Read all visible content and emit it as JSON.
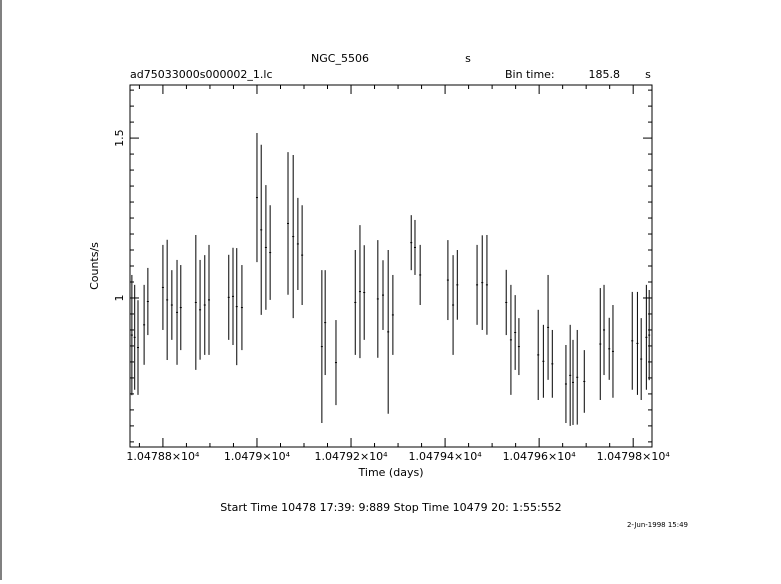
{
  "chart_data": {
    "type": "errorbar",
    "title": "NGC_5506",
    "title_unit": "s",
    "subtitle": "ad75033000s000002_1.lc",
    "bin_time_label": "Bin time:",
    "bin_time": 185.8,
    "bin_time_unit": "s",
    "xlabel": "Time (days)",
    "ylabel": "Counts/s",
    "footer": "Start Time 10478 17:39: 9:889    Stop Time 10479 20: 1:55:552",
    "date_stamp": "2-Jun-1998 15:49",
    "xlim": [
      10478.73,
      10479.84
    ],
    "ylim": [
      0.534,
      1.666
    ],
    "xticks": [
      {
        "value": 10478.8,
        "label": "1.04788×10⁴"
      },
      {
        "value": 10479.0,
        "label": "1.0479×10⁴"
      },
      {
        "value": 10479.2,
        "label": "1.04792×10⁴"
      },
      {
        "value": 10479.4,
        "label": "1.04794×10⁴"
      },
      {
        "value": 10479.6,
        "label": "1.04796×10⁴"
      },
      {
        "value": 10479.8,
        "label": "1.04798×10⁴"
      }
    ],
    "x_minor_ticks": [
      10478.75,
      10478.85,
      10478.9,
      10478.95,
      10479.05,
      10479.1,
      10479.15,
      10479.25,
      10479.3,
      10479.35,
      10479.45,
      10479.5,
      10479.55,
      10479.65,
      10479.7,
      10479.75
    ],
    "yticks": [
      1,
      1.5
    ],
    "y_minor_ticks": [
      0.55,
      0.6,
      0.65,
      0.7,
      0.75,
      0.8,
      0.85,
      0.9,
      0.95,
      1.05,
      1.1,
      1.15,
      1.2,
      1.25,
      1.3,
      1.35,
      1.4,
      1.45,
      1.55,
      1.6,
      1.65
    ],
    "color": "#000000",
    "x": [
      10478.734,
      10478.74,
      10478.747,
      10478.76,
      10478.768,
      10478.8,
      10478.809,
      10478.819,
      10478.83,
      10478.838,
      10478.87,
      10478.879,
      10478.889,
      10478.898,
      10478.94,
      10478.949,
      10478.957,
      10478.968,
      10479.0,
      10479.009,
      10479.019,
      10479.028,
      10479.066,
      10479.077,
      10479.087,
      10479.096,
      10479.138,
      10479.145,
      10479.168,
      10479.209,
      10479.219,
      10479.228,
      10479.257,
      10479.268,
      10479.279,
      10479.289,
      10479.328,
      10479.336,
      10479.347,
      10479.406,
      10479.417,
      10479.426,
      10479.468,
      10479.479,
      10479.489,
      10479.53,
      10479.54,
      10479.549,
      10479.557,
      10479.598,
      10479.609,
      10479.619,
      10479.628,
      10479.657,
      10479.666,
      10479.672,
      10479.681,
      10479.696,
      10479.73,
      10479.738,
      10479.749,
      10479.757,
      10479.798,
      10479.809,
      10479.817,
      10479.828,
      10479.834
    ],
    "values": [
      0.884,
      0.877,
      0.845,
      0.916,
      0.989,
      1.033,
      0.994,
      0.978,
      0.955,
      0.97,
      0.986,
      0.963,
      0.978,
      0.994,
      1.002,
      1.005,
      0.973,
      0.97,
      1.314,
      1.213,
      1.158,
      1.142,
      1.233,
      1.192,
      1.169,
      1.134,
      0.848,
      0.923,
      0.798,
      0.986,
      1.02,
      1.017,
      0.997,
      1.009,
      0.894,
      0.947,
      1.173,
      1.158,
      1.072,
      1.056,
      0.978,
      1.041,
      1.041,
      1.048,
      1.041,
      0.986,
      0.869,
      0.892,
      0.848,
      0.822,
      0.802,
      0.908,
      0.794,
      0.731,
      0.758,
      0.736,
      0.752,
      0.739,
      0.856,
      0.9,
      0.841,
      0.833,
      0.866,
      0.858,
      0.809,
      0.877,
      0.884
    ],
    "errors": [
      0.188,
      0.164,
      0.148,
      0.125,
      0.105,
      0.133,
      0.188,
      0.109,
      0.164,
      0.133,
      0.211,
      0.156,
      0.156,
      0.172,
      0.133,
      0.152,
      0.183,
      0.133,
      0.202,
      0.266,
      0.195,
      0.148,
      0.223,
      0.255,
      0.144,
      0.156,
      0.239,
      0.164,
      0.133,
      0.164,
      0.208,
      0.148,
      0.184,
      0.109,
      0.256,
      0.125,
      0.086,
      0.086,
      0.094,
      0.125,
      0.156,
      0.109,
      0.125,
      0.148,
      0.156,
      0.102,
      0.172,
      0.117,
      0.089,
      0.141,
      0.114,
      0.164,
      0.106,
      0.122,
      0.158,
      0.133,
      0.148,
      0.098,
      0.175,
      0.141,
      0.097,
      0.145,
      0.153,
      0.161,
      0.128,
      0.164,
      0.141
    ]
  }
}
